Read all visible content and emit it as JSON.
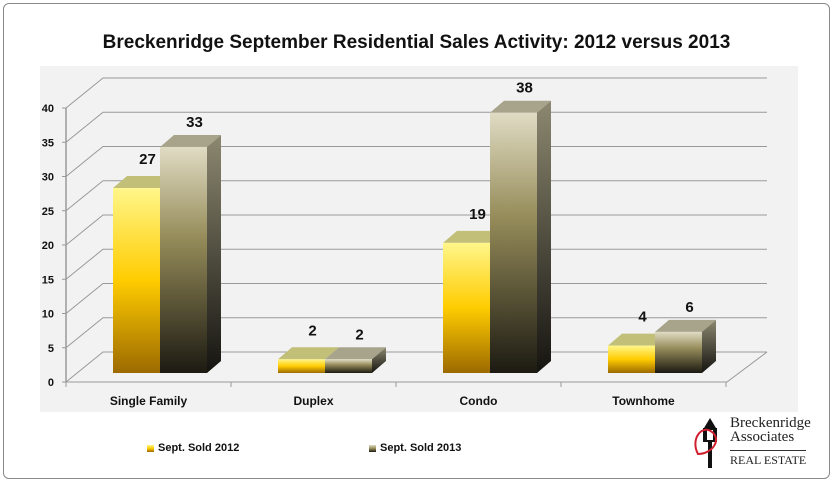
{
  "chart_data": {
    "type": "bar",
    "title": "Breckenridge September Residential Sales Activity:  2012 versus 2013",
    "categories": [
      "Single Family",
      "Duplex",
      "Condo",
      "Townhome"
    ],
    "series": [
      {
        "name": "Sept. Sold 2012",
        "values": [
          27,
          2,
          19,
          4
        ],
        "color": "#f5c400"
      },
      {
        "name": "Sept. Sold 2013",
        "values": [
          33,
          2,
          38,
          6
        ],
        "color": "#8a8460"
      }
    ],
    "ylim": [
      0,
      40
    ],
    "yticks": [
      0,
      5,
      10,
      15,
      20,
      25,
      30,
      35,
      40
    ],
    "grid": true,
    "style": "3d-column",
    "legend": "bottom-left"
  },
  "logo": {
    "line1": "Breckenridge",
    "line2": "Associates",
    "line3": "REAL ESTATE"
  }
}
